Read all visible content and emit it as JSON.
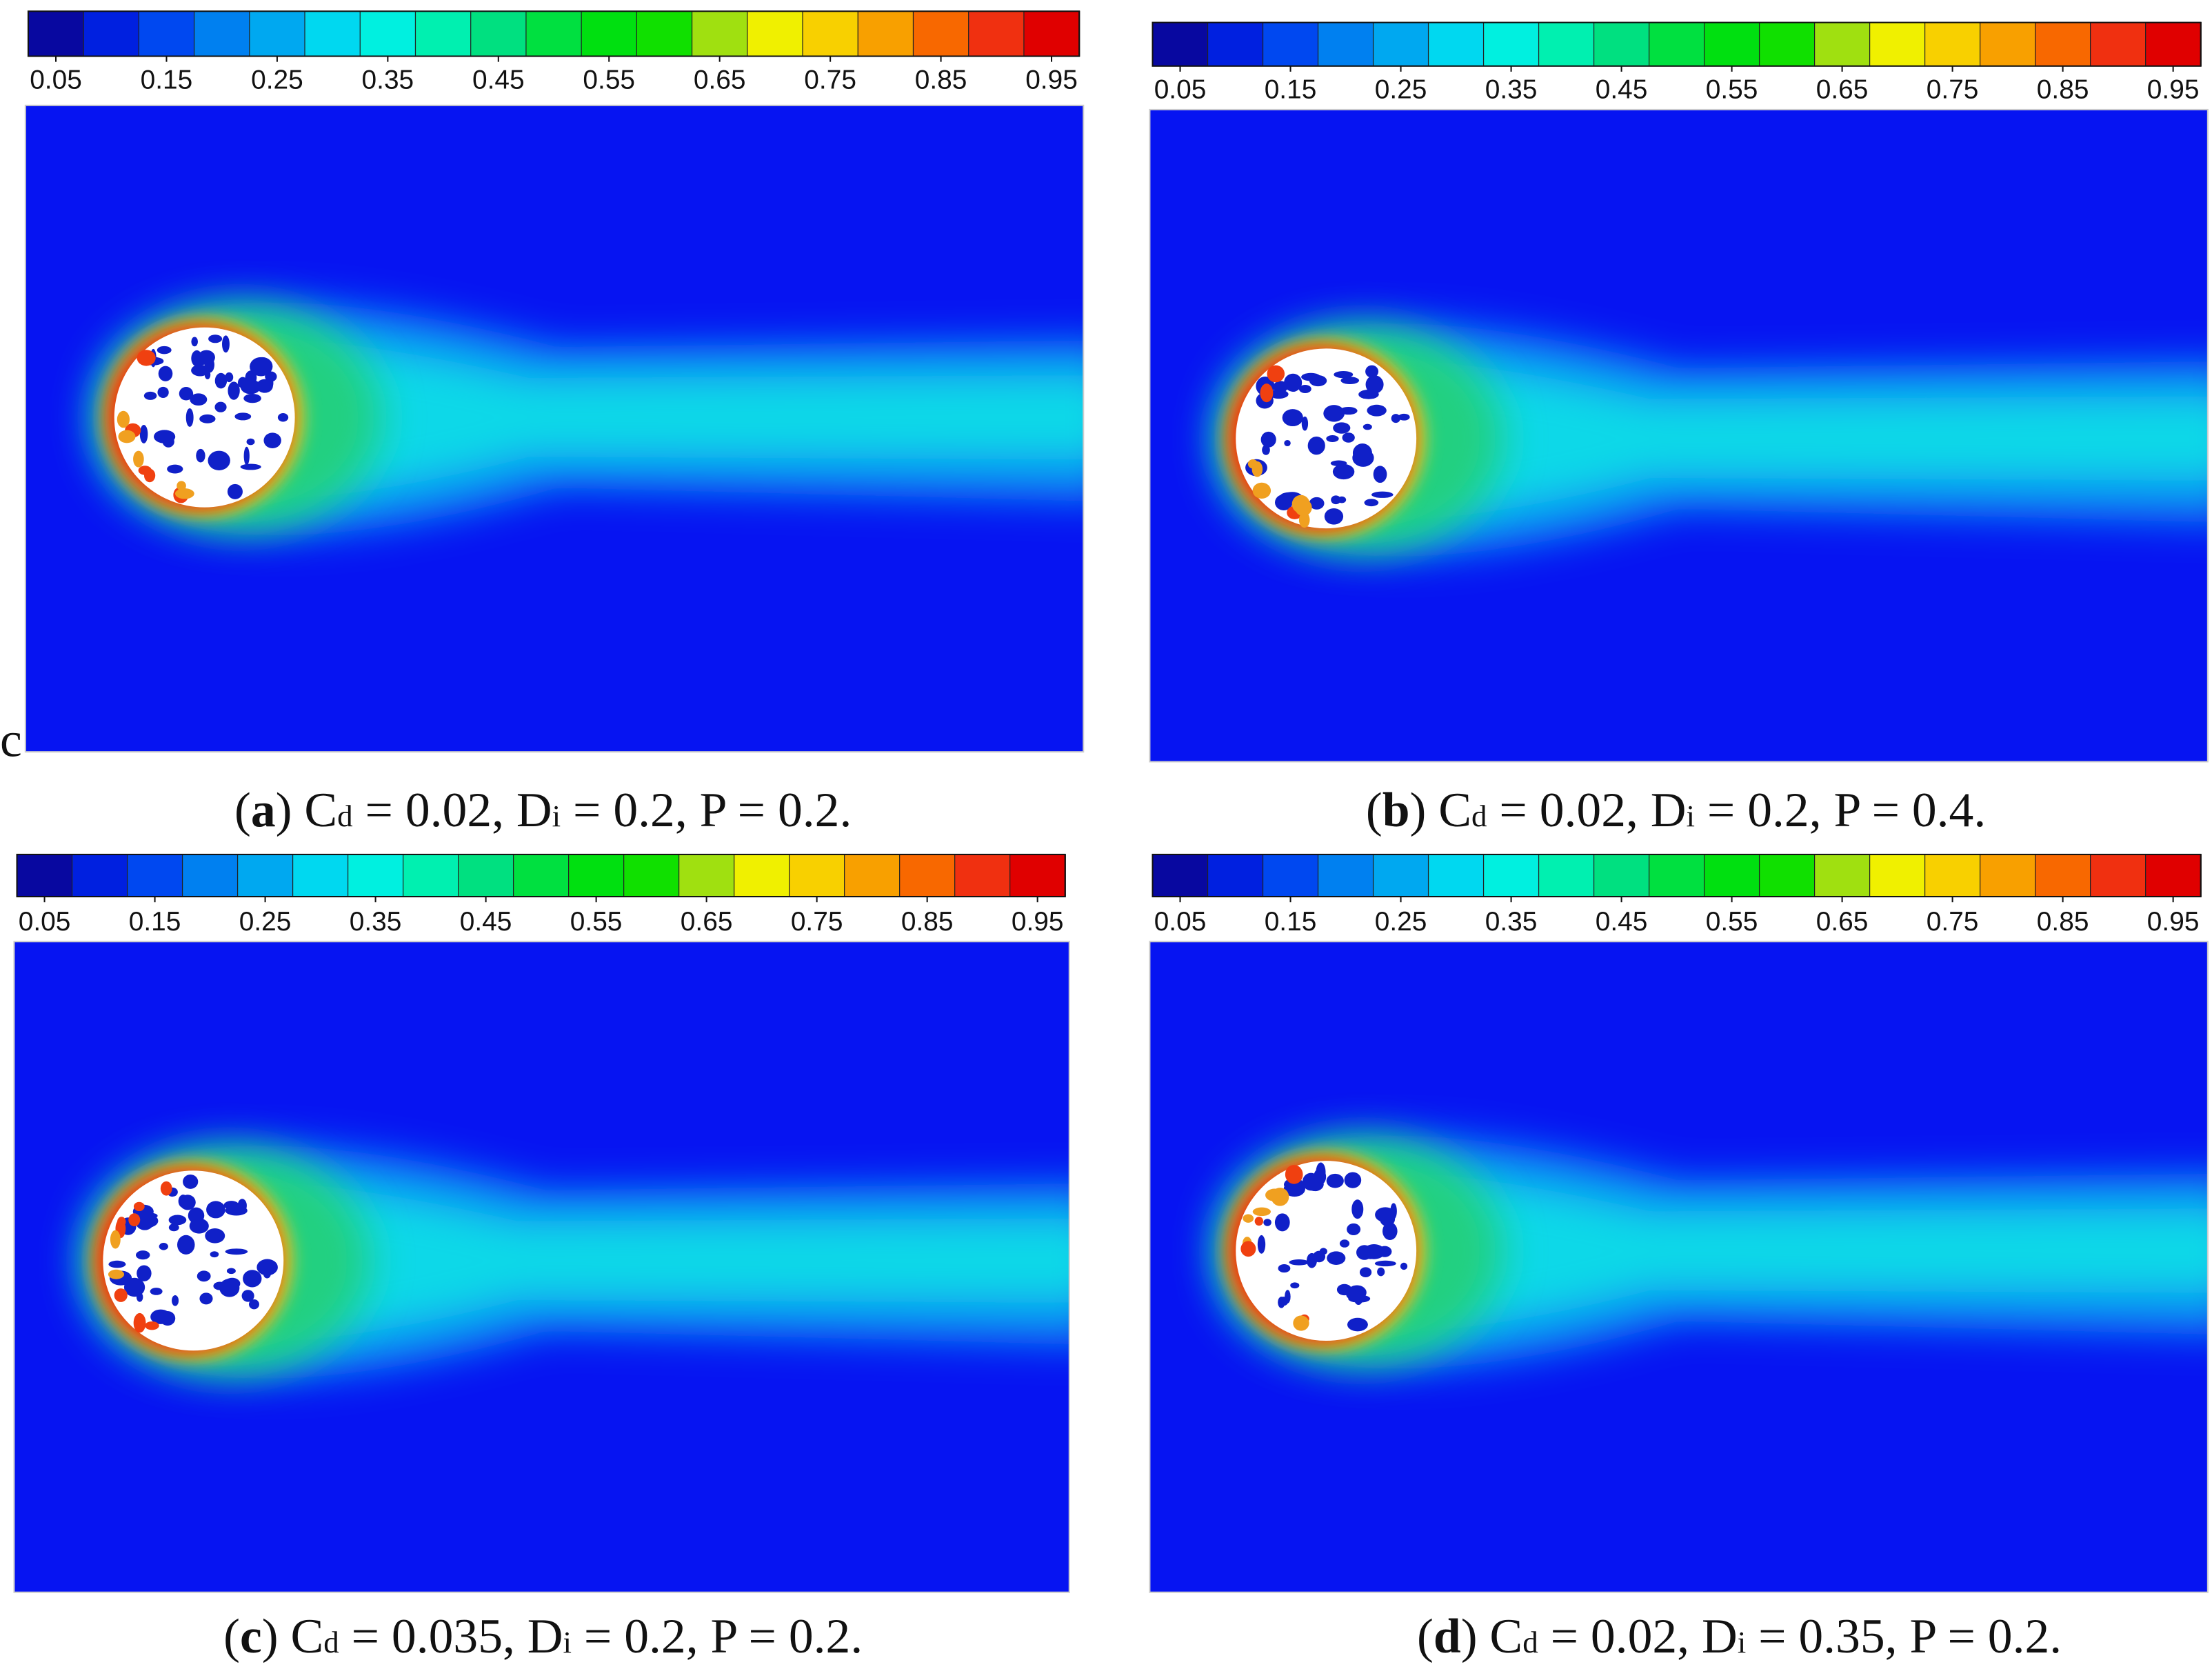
{
  "chart_data": [
    {
      "type": "contour",
      "annotation": "c",
      "caption": [
        "(",
        "a",
        ") C",
        "d",
        " = 0.02, D",
        "i",
        " = 0.2, P = 0.2."
      ],
      "xlim": [
        0.025,
        0.975
      ],
      "xticks": [
        0.05,
        0.15,
        0.25,
        0.35,
        0.45,
        0.55,
        0.65,
        0.75,
        0.85,
        0.95
      ],
      "colors": [
        "#0808a0",
        "#0020e0",
        "#0048f0",
        "#0080f0",
        "#00a8f0",
        "#00d8f0",
        "#00f0e0",
        "#00f0b0",
        "#00e080",
        "#00e040",
        "#00e010",
        "#10e000",
        "#a0e010",
        "#f0f000",
        "#f8d000",
        "#f8a000",
        "#f86800",
        "#f03010",
        "#e00000"
      ]
    },
    {
      "type": "contour",
      "caption": [
        "(",
        "b",
        ") C",
        "d",
        " = 0.02, D",
        "i",
        " = 0.2, P = 0.4."
      ],
      "xlim": [
        0.025,
        0.975
      ],
      "xticks": [
        0.05,
        0.15,
        0.25,
        0.35,
        0.45,
        0.55,
        0.65,
        0.75,
        0.85,
        0.95
      ],
      "colors": [
        "#0808a0",
        "#0020e0",
        "#0048f0",
        "#0080f0",
        "#00a8f0",
        "#00d8f0",
        "#00f0e0",
        "#00f0b0",
        "#00e080",
        "#00e040",
        "#00e010",
        "#10e000",
        "#a0e010",
        "#f0f000",
        "#f8d000",
        "#f8a000",
        "#f86800",
        "#f03010",
        "#e00000"
      ]
    },
    {
      "type": "contour",
      "caption": [
        "(",
        "c",
        ") C",
        "d",
        " = 0.035, D",
        "i",
        " = 0.2, P = 0.2."
      ],
      "xlim": [
        0.025,
        0.975
      ],
      "xticks": [
        0.05,
        0.15,
        0.25,
        0.35,
        0.45,
        0.55,
        0.65,
        0.75,
        0.85,
        0.95
      ],
      "colors": [
        "#0808a0",
        "#0020e0",
        "#0048f0",
        "#0080f0",
        "#00a8f0",
        "#00d8f0",
        "#00f0e0",
        "#00f0b0",
        "#00e080",
        "#00e040",
        "#00e010",
        "#10e000",
        "#a0e010",
        "#f0f000",
        "#f8d000",
        "#f8a000",
        "#f86800",
        "#f03010",
        "#e00000"
      ]
    },
    {
      "type": "contour",
      "caption": [
        "(",
        "d",
        ") C",
        "d",
        " = 0.02, D",
        "i",
        " = 0.35, P = 0.2."
      ],
      "xlim": [
        0.025,
        0.975
      ],
      "xticks": [
        0.05,
        0.15,
        0.25,
        0.35,
        0.45,
        0.55,
        0.65,
        0.75,
        0.85,
        0.95
      ],
      "colors": [
        "#0808a0",
        "#0020e0",
        "#0048f0",
        "#0080f0",
        "#00a8f0",
        "#00d8f0",
        "#00f0e0",
        "#00f0b0",
        "#00e080",
        "#00e040",
        "#00e010",
        "#10e000",
        "#a0e010",
        "#f0f000",
        "#f8d000",
        "#f8a000",
        "#f86800",
        "#f03010",
        "#e00000"
      ]
    }
  ]
}
